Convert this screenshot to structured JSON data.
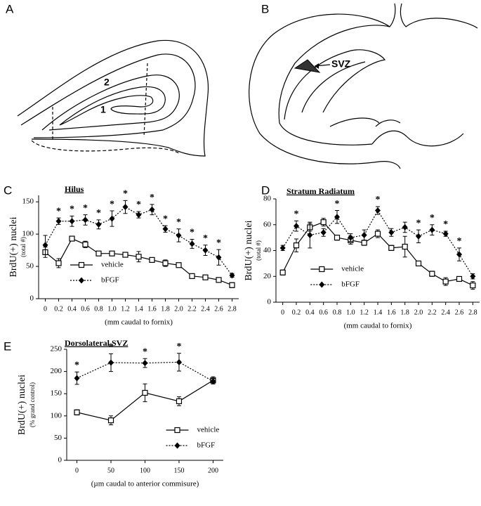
{
  "panels": {
    "A": {
      "letter": "A",
      "labels": [
        "2",
        "1"
      ]
    },
    "B": {
      "letter": "B",
      "labels": [
        "SVZ"
      ]
    }
  },
  "chart_data": [
    {
      "type": "line",
      "panel": "C",
      "title": "Hilus",
      "ylabel": "BrdU(+) nuclei",
      "ylabel_note": "(total #)",
      "xlabel": "(mm caudal to fornix)",
      "x": [
        0,
        0.2,
        0.4,
        0.6,
        0.8,
        1.0,
        1.2,
        1.4,
        1.6,
        1.8,
        2.0,
        2.2,
        2.4,
        2.6,
        2.8
      ],
      "xlim": [
        -0.1,
        2.9
      ],
      "xticks": [
        0,
        0.2,
        0.4,
        0.6,
        0.8,
        {
          "value": 1,
          "label": "1.0"
        },
        1.2,
        1.4,
        1.6,
        1.8,
        {
          "value": 2,
          "label": "2.0"
        },
        2.2,
        2.4,
        2.6,
        2.8
      ],
      "ylim": [
        0,
        160
      ],
      "yticks": [
        0,
        50,
        100,
        150
      ],
      "legend_position": "lower left",
      "significance_marker": "*",
      "series": [
        {
          "name": "vehicle",
          "color": "#000000",
          "line_style": "solid",
          "marker": "open-square",
          "values": [
            72,
            55,
            93,
            84,
            70,
            70,
            68,
            65,
            60,
            55,
            52,
            35,
            33,
            29,
            21
          ],
          "errors": [
            8,
            7,
            3,
            5,
            2,
            3,
            3,
            8,
            3,
            5,
            2,
            3,
            3,
            2,
            4
          ]
        },
        {
          "name": "bFGF",
          "color": "#000000",
          "line_style": "dotted",
          "marker": "filled-diamond",
          "values": [
            83,
            120,
            120,
            122,
            115,
            124,
            142,
            130,
            138,
            108,
            98,
            85,
            75,
            64,
            36
          ],
          "errors": [
            15,
            5,
            8,
            8,
            7,
            12,
            10,
            5,
            8,
            5,
            10,
            7,
            8,
            12,
            3
          ],
          "significant": [
            false,
            true,
            true,
            true,
            true,
            true,
            true,
            true,
            true,
            true,
            true,
            true,
            true,
            true,
            false
          ]
        }
      ]
    },
    {
      "type": "line",
      "panel": "D",
      "title": "Stratum  Radiatum",
      "ylabel": "BrdU(+) nuclei",
      "ylabel_note": "(total #)",
      "xlabel": "(mm caudal to fornix)",
      "x": [
        0,
        0.2,
        0.4,
        0.6,
        0.8,
        1.0,
        1.2,
        1.4,
        1.6,
        1.8,
        2.0,
        2.2,
        2.4,
        2.6,
        2.8
      ],
      "xlim": [
        -0.1,
        2.9
      ],
      "xticks": [
        0,
        0.2,
        0.4,
        0.6,
        0.8,
        {
          "value": 1,
          "label": "1.0"
        },
        1.2,
        1.4,
        1.6,
        1.8,
        {
          "value": 2,
          "label": "2.0"
        },
        2.2,
        2.4,
        2.6,
        2.8
      ],
      "ylim": [
        0,
        80
      ],
      "yticks": [
        0,
        20,
        40,
        60,
        80
      ],
      "legend_position": "lower center",
      "significance_marker": "*",
      "series": [
        {
          "name": "vehicle",
          "color": "#000000",
          "line_style": "solid",
          "marker": "open-square",
          "values": [
            23,
            44,
            58,
            62,
            50,
            48,
            46,
            53,
            42,
            43,
            30,
            22,
            16,
            18,
            13
          ],
          "errors": [
            2,
            5,
            3,
            3,
            2,
            3,
            2,
            3,
            2,
            8,
            1,
            2,
            3,
            1,
            3
          ]
        },
        {
          "name": "bFGF",
          "color": "#000000",
          "line_style": "dotted",
          "marker": "filled-diamond",
          "values": [
            42,
            59,
            52,
            54,
            66,
            50,
            52,
            71,
            54,
            58,
            51,
            56,
            53,
            37,
            20
          ],
          "errors": [
            2,
            4,
            10,
            3,
            5,
            3,
            4,
            3,
            3,
            4,
            5,
            4,
            2,
            5,
            2
          ],
          "significant": [
            false,
            true,
            false,
            false,
            true,
            false,
            false,
            true,
            false,
            false,
            true,
            true,
            true,
            true,
            false
          ]
        }
      ]
    },
    {
      "type": "line",
      "panel": "E",
      "title": "Dorsolateral  SVZ",
      "ylabel": "BrdU(+) nuclei",
      "ylabel_note": "(% grand control)",
      "xlabel": "(µm caudal to anterior commisure)",
      "x": [
        0,
        50,
        100,
        150,
        200
      ],
      "xlim": [
        -15,
        215
      ],
      "xticks": [
        0,
        50,
        100,
        150,
        200
      ],
      "ylim": [
        0,
        250
      ],
      "yticks": [
        0,
        50,
        100,
        150,
        200,
        250
      ],
      "legend_position": "lower right",
      "significance_marker": "*",
      "series": [
        {
          "name": "vehicle",
          "color": "#000000",
          "line_style": "solid",
          "marker": "open-square",
          "values": [
            108,
            90,
            152,
            133,
            180
          ],
          "errors": [
            6,
            10,
            20,
            10,
            8
          ]
        },
        {
          "name": "bFGF",
          "color": "#000000",
          "line_style": "dotted",
          "marker": "filled-diamond",
          "values": [
            185,
            220,
            219,
            221,
            178
          ],
          "errors": [
            14,
            20,
            10,
            20,
            6
          ],
          "significant": [
            true,
            true,
            true,
            true,
            false
          ]
        }
      ]
    }
  ]
}
